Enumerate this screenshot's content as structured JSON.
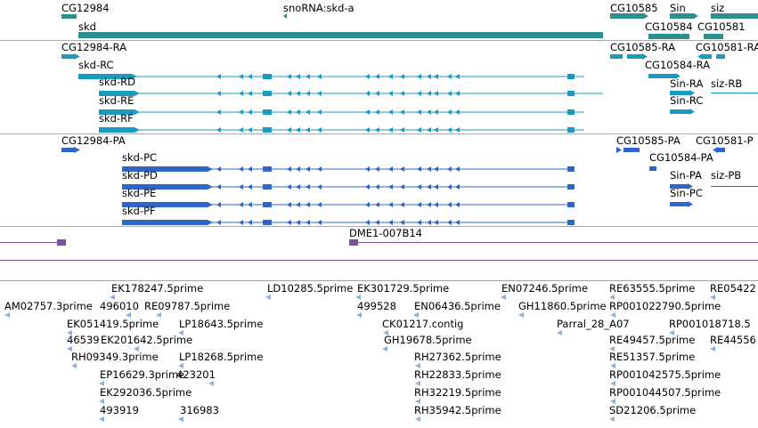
{
  "colors": {
    "gene": "#2f8f8f",
    "transcript": "#199bc0",
    "protein": "#2f64c8",
    "bac": "#7a4f9c",
    "est": "#8cb2d9",
    "separator": "#aaaaaa",
    "line_teal": "#6fb3c4"
  },
  "tracks": {
    "genes": [
      {
        "label": "CG12984"
      },
      {
        "label": "snoRNA:skd-a"
      },
      {
        "label": "skd"
      },
      {
        "label": "CG10585"
      },
      {
        "label": "Sin"
      },
      {
        "label": "siz"
      },
      {
        "label": "CG10584"
      },
      {
        "label": "CG10581"
      }
    ],
    "transcripts": [
      {
        "label": "CG12984-RA"
      },
      {
        "label": "skd-RC"
      },
      {
        "label": "skd-RD"
      },
      {
        "label": "skd-RE"
      },
      {
        "label": "skd-RF"
      },
      {
        "label": "CG10585-RA"
      },
      {
        "label": "CG10581-RA"
      },
      {
        "label": "CG10584-RA"
      },
      {
        "label": "Sin-RA"
      },
      {
        "label": "siz-RB"
      },
      {
        "label": "Sin-RC"
      }
    ],
    "proteins": [
      {
        "label": "CG12984-PA"
      },
      {
        "label": "skd-PC"
      },
      {
        "label": "skd-PD"
      },
      {
        "label": "skd-PE"
      },
      {
        "label": "skd-PF"
      },
      {
        "label": "CG10585-PA"
      },
      {
        "label": "CG10581-P"
      },
      {
        "label": "CG10584-PA"
      },
      {
        "label": "Sin-PA"
      },
      {
        "label": "siz-PB"
      },
      {
        "label": "Sin-PC"
      }
    ],
    "bac": [
      {
        "label": "DME1-007B14"
      }
    ],
    "ests": [
      {
        "label": "EK178247.5prime"
      },
      {
        "label": "LD10285.5prime"
      },
      {
        "label": "EK301729.5prime"
      },
      {
        "label": "EN07246.5prime"
      },
      {
        "label": "RE63555.5prime"
      },
      {
        "label": "RE05422"
      },
      {
        "label": "AM02757.3prime"
      },
      {
        "label": "496010"
      },
      {
        "label": "RE09787.5prime"
      },
      {
        "label": "499528"
      },
      {
        "label": "EN06436.5prime"
      },
      {
        "label": "GH11860.5prime"
      },
      {
        "label": "RP001022790.5prime"
      },
      {
        "label": "EK051419.5prime"
      },
      {
        "label": "LP18643.5prime"
      },
      {
        "label": "CK01217.contig"
      },
      {
        "label": "Parral_28_A07"
      },
      {
        "label": "RP001018718.5"
      },
      {
        "label": "46539"
      },
      {
        "label": "EK201642.5prime"
      },
      {
        "label": "GH19678.5prime"
      },
      {
        "label": "RE49457.5prime"
      },
      {
        "label": "RE44556"
      },
      {
        "label": "RH09349.3prime"
      },
      {
        "label": "LP18268.5prime"
      },
      {
        "label": "RH27362.5prime"
      },
      {
        "label": "RE51357.5prime"
      },
      {
        "label": "EP16629.3prime"
      },
      {
        "label": "423201"
      },
      {
        "label": "RH22833.5prime"
      },
      {
        "label": "RP001042575.5prime"
      },
      {
        "label": "EK292036.5prime"
      },
      {
        "label": "RH32219.5prime"
      },
      {
        "label": "RP001044507.5prime"
      },
      {
        "label": "493919"
      },
      {
        "label": "316983"
      },
      {
        "label": "RH35942.5prime"
      },
      {
        "label": "SD21206.5prime"
      }
    ]
  }
}
